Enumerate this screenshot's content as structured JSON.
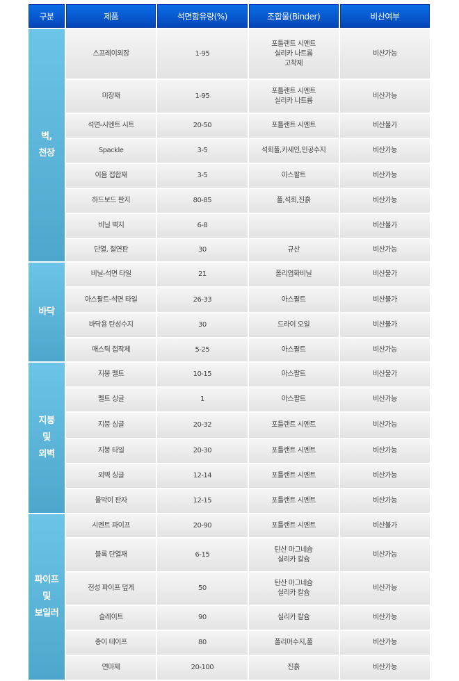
{
  "headers": [
    "구분",
    "제품",
    "석면함유량(%)",
    "조합물(Binder)",
    "비산여부"
  ],
  "colors": {
    "header": "#0a5cd6",
    "category": "#5cb6dc",
    "cell": "#ececec"
  },
  "groups": [
    {
      "category": "벽,\n천장",
      "rows": [
        {
          "product": "스프레이외장",
          "content": "1-95",
          "binder": "포틀랜트 시멘트\n실리카 나트륨\n고착제",
          "scatter": "비산가능"
        },
        {
          "product": "미장재",
          "content": "1-95",
          "binder": "포틀랜트 시멘트\n실리카 나트륨",
          "scatter": "비산가능"
        },
        {
          "product": "석면-시멘트 시트",
          "content": "20-50",
          "binder": "포틀랜트 시멘트",
          "scatter": "비산불가"
        },
        {
          "product": "Spackle",
          "content": "3-5",
          "binder": "석회풀,카세인,인공수지",
          "scatter": "비산가능"
        },
        {
          "product": "이음 접합재",
          "content": "3-5",
          "binder": "아스팔트",
          "scatter": "비산가능"
        },
        {
          "product": "하드보드 판지",
          "content": "80-85",
          "binder": "풀,석회,진흙",
          "scatter": "비산가능"
        },
        {
          "product": "비닐 벽지",
          "content": "6-8",
          "binder": "",
          "scatter": "비산불가"
        },
        {
          "product": "단열, 절연판",
          "content": "30",
          "binder": "규산",
          "scatter": "비산가능"
        }
      ]
    },
    {
      "category": "바닥",
      "rows": [
        {
          "product": "비닐-석면 타일",
          "content": "21",
          "binder": "폴리염화비닐",
          "scatter": "비산불가"
        },
        {
          "product": "아스팔트-석면 타일",
          "content": "26-33",
          "binder": "아스팔트",
          "scatter": "비산불가"
        },
        {
          "product": "바닥용 탄성수지",
          "content": "30",
          "binder": "드라이 오일",
          "scatter": "비산불가"
        },
        {
          "product": "매스틱 접작제",
          "content": "5-25",
          "binder": "아스팔트",
          "scatter": "비산가능"
        }
      ]
    },
    {
      "category": "지붕\n및\n외벽",
      "rows": [
        {
          "product": "지붕 펠트",
          "content": "10-15",
          "binder": "아스팔트",
          "scatter": "비산불가"
        },
        {
          "product": "펠트 싱글",
          "content": "1",
          "binder": "아스팔트",
          "scatter": "비산가능"
        },
        {
          "product": "지붕 싱글",
          "content": "20-32",
          "binder": "포틀랜트 시멘트",
          "scatter": "비산가능"
        },
        {
          "product": "지붕 타일",
          "content": "20-30",
          "binder": "포틀랜트 시멘트",
          "scatter": "비산가능"
        },
        {
          "product": "외벽 싱글",
          "content": "12-14",
          "binder": "포틀랜트 시멘트",
          "scatter": "비산가능"
        },
        {
          "product": "물막이 판자",
          "content": "12-15",
          "binder": "포틀랜트 시멘트",
          "scatter": "비산가능"
        }
      ]
    },
    {
      "category": "파이프\n및\n보일러",
      "rows": [
        {
          "product": "시멘트 파이프",
          "content": "20-90",
          "binder": "포틀랜트 시멘트",
          "scatter": "비산불가"
        },
        {
          "product": "블록 단열재",
          "content": "6-15",
          "binder": "탄산 마그네슘\n실리카 칼슘",
          "scatter": "비산가능"
        },
        {
          "product": "전성 파이프 덮게",
          "content": "50",
          "binder": "탄산 마그네슘\n실리카 칼슘",
          "scatter": "비산가능"
        },
        {
          "product": "슬레이트",
          "content": "90",
          "binder": "실리카 칼슘",
          "scatter": "비산가능"
        },
        {
          "product": "종이 테이프",
          "content": "80",
          "binder": "폴리머수지,풀",
          "scatter": "비산가능"
        },
        {
          "product": "연마제",
          "content": "20-100",
          "binder": "진흙",
          "scatter": "비산가능"
        }
      ]
    }
  ]
}
